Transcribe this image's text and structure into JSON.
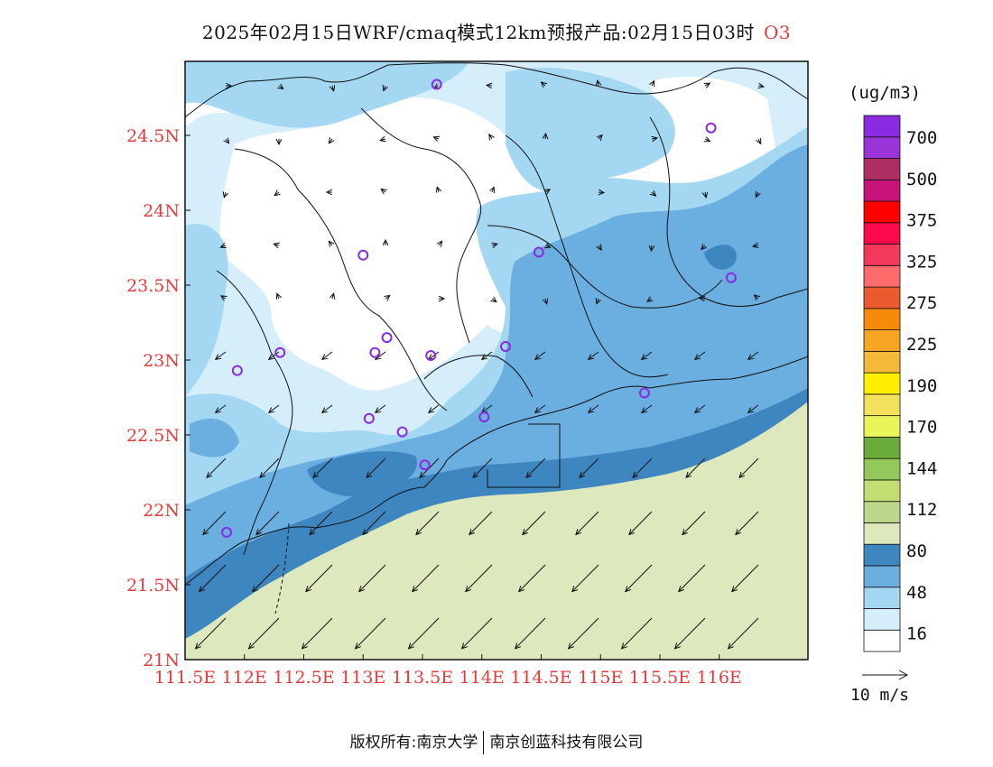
{
  "title": "2025年02月15日WRF/cmaq模式12km预报产品:02月15日03时",
  "species": "O3",
  "footer": {
    "left": "版权所有:南京大学",
    "right": "南京创蓝科技有限公司"
  },
  "colorbar": {
    "units": "(ug/m3)",
    "bins": [
      {
        "color": "#ffffff",
        "label": ""
      },
      {
        "color": "#d6eefa",
        "label": "16"
      },
      {
        "color": "#a3d7f2",
        "label": ""
      },
      {
        "color": "#6baee0",
        "label": "48"
      },
      {
        "color": "#3d86c0",
        "label": ""
      },
      {
        "color": "#dde9bc",
        "label": "80"
      },
      {
        "color": "#bcd78a",
        "label": ""
      },
      {
        "color": "#c3df74",
        "label": "112"
      },
      {
        "color": "#94c85a",
        "label": ""
      },
      {
        "color": "#6aab3a",
        "label": "144"
      },
      {
        "color": "#e9f45a",
        "label": ""
      },
      {
        "color": "#f3e15d",
        "label": "170"
      },
      {
        "color": "#ffee00",
        "label": "190"
      },
      {
        "color": "#f6b839",
        "label": ""
      },
      {
        "color": "#f6a524",
        "label": "225"
      },
      {
        "color": "#f88a0b",
        "label": ""
      },
      {
        "color": "#ea5a2e",
        "label": "275"
      },
      {
        "color": "#ff6a6a",
        "label": ""
      },
      {
        "color": "#f3385c",
        "label": "325"
      },
      {
        "color": "#fa0a4a",
        "label": ""
      },
      {
        "color": "#ff0000",
        "label": "375"
      },
      {
        "color": "#c8147a",
        "label": ""
      },
      {
        "color": "#ae2d62",
        "label": "500"
      },
      {
        "color": "#9a34d8",
        "label": ""
      },
      {
        "color": "#8a2be2",
        "label": "700"
      }
    ],
    "top_ticks": [
      "700",
      "500",
      "375",
      "325",
      "275",
      "225",
      "190",
      "170",
      "144",
      "112",
      "80",
      "48",
      "16"
    ]
  },
  "wind_key": {
    "label": "10 m/s"
  },
  "axes": {
    "x_ticks": [
      "111.5E",
      "112E",
      "112.5E",
      "113E",
      "113.5E",
      "114E",
      "114.5E",
      "115E",
      "115.5E",
      "116E"
    ],
    "y_ticks": [
      "24.5N",
      "24N",
      "23.5N",
      "23N",
      "22.5N",
      "22N",
      "21.5N",
      "21N"
    ],
    "tick_color": "#e8393a"
  },
  "stations": [
    {
      "lon": 113.62,
      "lat": 24.84
    },
    {
      "lon": 115.93,
      "lat": 24.55
    },
    {
      "lon": 113.0,
      "lat": 23.7
    },
    {
      "lon": 114.48,
      "lat": 23.72
    },
    {
      "lon": 116.1,
      "lat": 23.55
    },
    {
      "lon": 113.2,
      "lat": 23.15
    },
    {
      "lon": 112.3,
      "lat": 23.05
    },
    {
      "lon": 113.1,
      "lat": 23.05
    },
    {
      "lon": 113.57,
      "lat": 23.03
    },
    {
      "lon": 114.2,
      "lat": 23.09
    },
    {
      "lon": 111.94,
      "lat": 22.93
    },
    {
      "lon": 115.37,
      "lat": 22.78
    },
    {
      "lon": 113.05,
      "lat": 22.61
    },
    {
      "lon": 113.33,
      "lat": 22.52
    },
    {
      "lon": 114.02,
      "lat": 22.62
    },
    {
      "lon": 113.52,
      "lat": 22.3
    },
    {
      "lon": 111.85,
      "lat": 21.85
    }
  ]
}
